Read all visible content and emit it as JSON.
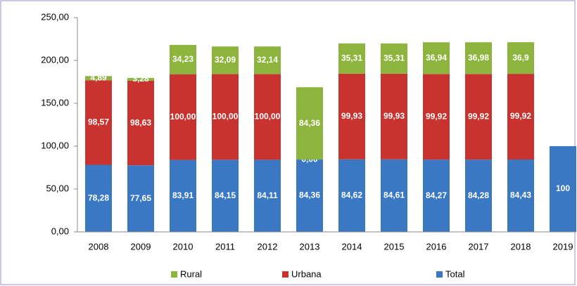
{
  "chart_data": {
    "type": "stacked-bar",
    "categories": [
      "2008",
      "2009",
      "2010",
      "2011",
      "2012",
      "2013",
      "2014",
      "2015",
      "2016",
      "2017",
      "2018",
      "2019"
    ],
    "series": [
      {
        "name": "Total",
        "color": "#3a78c4",
        "values": [
          78.28,
          77.65,
          83.91,
          84.15,
          84.11,
          84.36,
          84.62,
          84.61,
          84.27,
          84.28,
          84.43,
          100
        ],
        "value_labels": [
          "78,28",
          "77,65",
          "83,91",
          "84,15",
          "84,11",
          "84,36",
          "84,62",
          "84,61",
          "84,27",
          "84,28",
          "84,43",
          "100"
        ]
      },
      {
        "name": "Urbana",
        "color": "#c8332f",
        "values": [
          98.57,
          98.63,
          100,
          100,
          100,
          0,
          99.93,
          99.93,
          99.92,
          99.92,
          99.92,
          null
        ],
        "value_labels": [
          "98,57",
          "98,63",
          "100,00",
          "100,00",
          "100,00",
          "0,00",
          "99,93",
          "99,93",
          "99,92",
          "99,92",
          "99,92",
          null
        ]
      },
      {
        "name": "Rural",
        "color": "#8db43c",
        "values": [
          4.89,
          3.28,
          34.23,
          32.09,
          32.14,
          84.36,
          35.31,
          35.31,
          36.94,
          36.98,
          36.9,
          null
        ],
        "value_labels": [
          "4,89",
          "3,28",
          "34,23",
          "32,09",
          "32,14",
          "84,36",
          "35,31",
          "35,31",
          "36,94",
          "36,98",
          "36,9",
          null
        ]
      }
    ],
    "ylim": [
      0,
      250
    ],
    "yticks": [
      {
        "value": 0,
        "label": "0,00"
      },
      {
        "value": 50,
        "label": "50,00"
      },
      {
        "value": 100,
        "label": "100,00"
      },
      {
        "value": 150,
        "label": "150,00"
      },
      {
        "value": 200,
        "label": "200,00"
      },
      {
        "value": 250,
        "label": "250,00"
      }
    ],
    "legend": "bottom"
  }
}
